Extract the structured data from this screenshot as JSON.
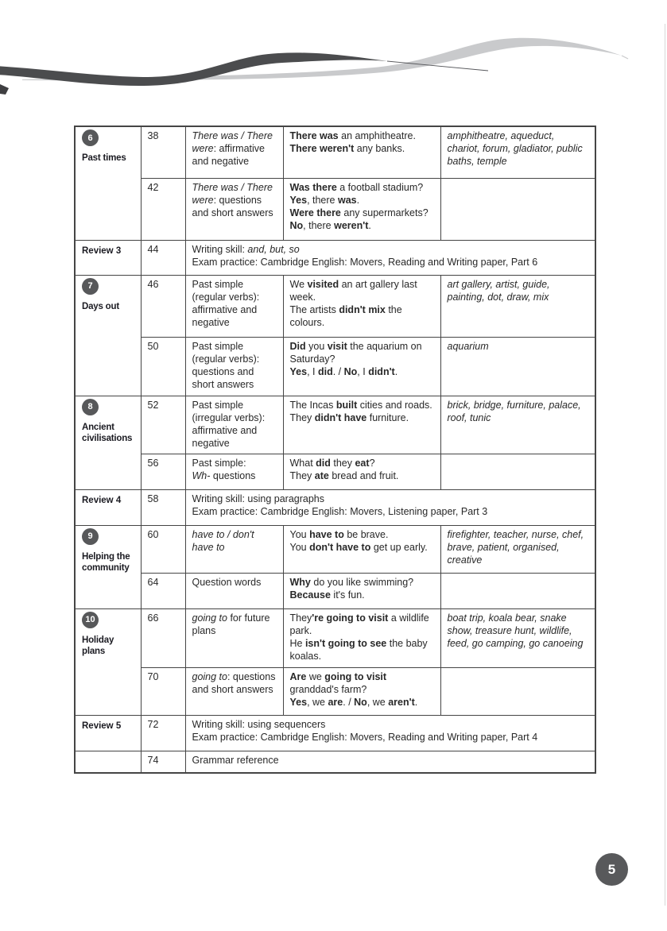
{
  "page_number": "5",
  "colors": {
    "badge": "#57585a",
    "page_bubble": "#58595b",
    "swoosh_dark": "#4b4c4e",
    "swoosh_light": "#c9cacc",
    "table_border": "#454545"
  },
  "toc": {
    "sections": [
      {
        "kind": "unit",
        "badge": "6",
        "title": "Past times",
        "lessons": [
          {
            "page": "38",
            "grammar": [
              {
                "t": "There was / There were",
                "i": true
              },
              {
                "t": ": affirmative and negative"
              }
            ],
            "examples": [
              [
                {
                  "t": "There was",
                  "b": true
                },
                {
                  "t": " an amphitheatre."
                }
              ],
              [
                {
                  "t": "There weren't",
                  "b": true
                },
                {
                  "t": " any banks."
                }
              ]
            ],
            "vocabulary": "amphitheatre, aqueduct, chariot, forum, gladiator, public baths, temple"
          },
          {
            "page": "42",
            "grammar": [
              {
                "t": "There was / There were",
                "i": true
              },
              {
                "t": ": questions and short answers"
              }
            ],
            "examples": [
              [
                {
                  "t": "Was there",
                  "b": true
                },
                {
                  "t": " a football stadium?"
                }
              ],
              [
                {
                  "t": "Yes",
                  "b": true
                },
                {
                  "t": ", there "
                },
                {
                  "t": "was",
                  "b": true
                },
                {
                  "t": "."
                }
              ],
              [
                {
                  "t": "Were there",
                  "b": true
                },
                {
                  "t": " any supermarkets?"
                }
              ],
              [
                {
                  "t": "No",
                  "b": true
                },
                {
                  "t": ", there "
                },
                {
                  "t": "weren't",
                  "b": true
                },
                {
                  "t": "."
                }
              ]
            ],
            "vocabulary": ""
          }
        ]
      },
      {
        "kind": "review",
        "title": "Review 3",
        "page": "44",
        "lines": [
          [
            {
              "t": "Writing skill: "
            },
            {
              "t": "and, but, so",
              "i": true
            }
          ],
          [
            {
              "t": "Exam practice: Cambridge English: Movers, Reading and Writing paper, Part 6"
            }
          ]
        ]
      },
      {
        "kind": "unit",
        "badge": "7",
        "title": "Days out",
        "lessons": [
          {
            "page": "46",
            "grammar": [
              {
                "t": "Past simple (regular verbs): affirmative and negative"
              }
            ],
            "examples": [
              [
                {
                  "t": "We "
                },
                {
                  "t": "visited",
                  "b": true
                },
                {
                  "t": " an art gallery last week."
                }
              ],
              [
                {
                  "t": "The artists "
                },
                {
                  "t": "didn't mix",
                  "b": true
                },
                {
                  "t": " the colours."
                }
              ]
            ],
            "vocabulary": "art gallery, artist, guide, painting, dot, draw, mix"
          },
          {
            "page": "50",
            "grammar": [
              {
                "t": "Past simple (regular verbs): questions and short answers"
              }
            ],
            "examples": [
              [
                {
                  "t": "Did",
                  "b": true
                },
                {
                  "t": " you "
                },
                {
                  "t": "visit",
                  "b": true
                },
                {
                  "t": " the aquarium on Saturday?"
                }
              ],
              [
                {
                  "t": "Yes",
                  "b": true
                },
                {
                  "t": ", I "
                },
                {
                  "t": "did",
                  "b": true
                },
                {
                  "t": ". / "
                },
                {
                  "t": "No",
                  "b": true
                },
                {
                  "t": ", I "
                },
                {
                  "t": "didn't",
                  "b": true
                },
                {
                  "t": "."
                }
              ]
            ],
            "vocabulary": "aquarium"
          }
        ]
      },
      {
        "kind": "unit",
        "badge": "8",
        "title": "Ancient civilisations",
        "lessons": [
          {
            "page": "52",
            "grammar": [
              {
                "t": "Past simple (irregular verbs): affirmative and negative"
              }
            ],
            "examples": [
              [
                {
                  "t": "The Incas "
                },
                {
                  "t": "built",
                  "b": true
                },
                {
                  "t": " cities and roads."
                }
              ],
              [
                {
                  "t": "They "
                },
                {
                  "t": "didn't have",
                  "b": true
                },
                {
                  "t": " furniture."
                }
              ]
            ],
            "vocabulary": "brick, bridge, furniture, palace, roof, tunic"
          },
          {
            "page": "56",
            "grammar": [
              {
                "t": "Past simple:"
              },
              {
                "br": true
              },
              {
                "t": "Wh-",
                "i": true
              },
              {
                "t": " questions"
              }
            ],
            "examples": [
              [
                {
                  "t": "What "
                },
                {
                  "t": "did",
                  "b": true
                },
                {
                  "t": " they "
                },
                {
                  "t": "eat",
                  "b": true
                },
                {
                  "t": "?"
                }
              ],
              [
                {
                  "t": "They "
                },
                {
                  "t": "ate",
                  "b": true
                },
                {
                  "t": " bread and fruit."
                }
              ]
            ],
            "vocabulary": ""
          }
        ]
      },
      {
        "kind": "review",
        "title": "Review 4",
        "page": "58",
        "lines": [
          [
            {
              "t": "Writing skill: using paragraphs"
            }
          ],
          [
            {
              "t": "Exam practice: Cambridge English: Movers, Listening paper, Part 3"
            }
          ]
        ]
      },
      {
        "kind": "unit",
        "badge": "9",
        "title": "Helping the community",
        "lessons": [
          {
            "page": "60",
            "grammar": [
              {
                "t": "have to / don't have to",
                "i": true
              }
            ],
            "examples": [
              [
                {
                  "t": "You "
                },
                {
                  "t": "have to",
                  "b": true
                },
                {
                  "t": " be brave."
                }
              ],
              [
                {
                  "t": "You "
                },
                {
                  "t": "don't have to",
                  "b": true
                },
                {
                  "t": " get up early."
                }
              ]
            ],
            "vocabulary": "firefighter, teacher, nurse, chef, brave, patient, organised, creative"
          },
          {
            "page": "64",
            "grammar": [
              {
                "t": "Question words"
              }
            ],
            "examples": [
              [
                {
                  "t": "Why",
                  "b": true
                },
                {
                  "t": " do you like swimming?"
                }
              ],
              [
                {
                  "t": "Because",
                  "b": true
                },
                {
                  "t": " it's fun."
                }
              ]
            ],
            "vocabulary": ""
          }
        ]
      },
      {
        "kind": "unit",
        "badge": "10",
        "title": "Holiday plans",
        "lessons": [
          {
            "page": "66",
            "grammar": [
              {
                "t": "going to",
                "i": true
              },
              {
                "t": " for future plans"
              }
            ],
            "examples": [
              [
                {
                  "t": "They"
                },
                {
                  "t": "'re going to visit",
                  "b": true
                },
                {
                  "t": " a wildlife park."
                }
              ],
              [
                {
                  "t": "He "
                },
                {
                  "t": "isn't going to see",
                  "b": true
                },
                {
                  "t": " the baby koalas."
                }
              ]
            ],
            "vocabulary": "boat trip, koala bear, snake show, treasure hunt, wildlife, feed, go camping, go canoeing"
          },
          {
            "page": "70",
            "grammar": [
              {
                "t": "going to",
                "i": true
              },
              {
                "t": ": questions and short answers"
              }
            ],
            "examples": [
              [
                {
                  "t": "Are",
                  "b": true
                },
                {
                  "t": " we "
                },
                {
                  "t": "going to visit",
                  "b": true
                },
                {
                  "t": " granddad's farm?"
                }
              ],
              [
                {
                  "t": "Yes",
                  "b": true
                },
                {
                  "t": ", we "
                },
                {
                  "t": "are",
                  "b": true
                },
                {
                  "t": ". / "
                },
                {
                  "t": "No",
                  "b": true
                },
                {
                  "t": ", we "
                },
                {
                  "t": "aren't",
                  "b": true
                },
                {
                  "t": "."
                }
              ]
            ],
            "vocabulary": ""
          }
        ]
      },
      {
        "kind": "review",
        "title": "Review 5",
        "page": "72",
        "lines": [
          [
            {
              "t": "Writing skill: using sequencers"
            }
          ],
          [
            {
              "t": "Exam practice: Cambridge English: Movers, Reading and Writing paper, Part 4"
            }
          ]
        ]
      },
      {
        "kind": "review",
        "title": "",
        "page": "74",
        "lines": [
          [
            {
              "t": "Grammar reference"
            }
          ]
        ]
      }
    ]
  }
}
